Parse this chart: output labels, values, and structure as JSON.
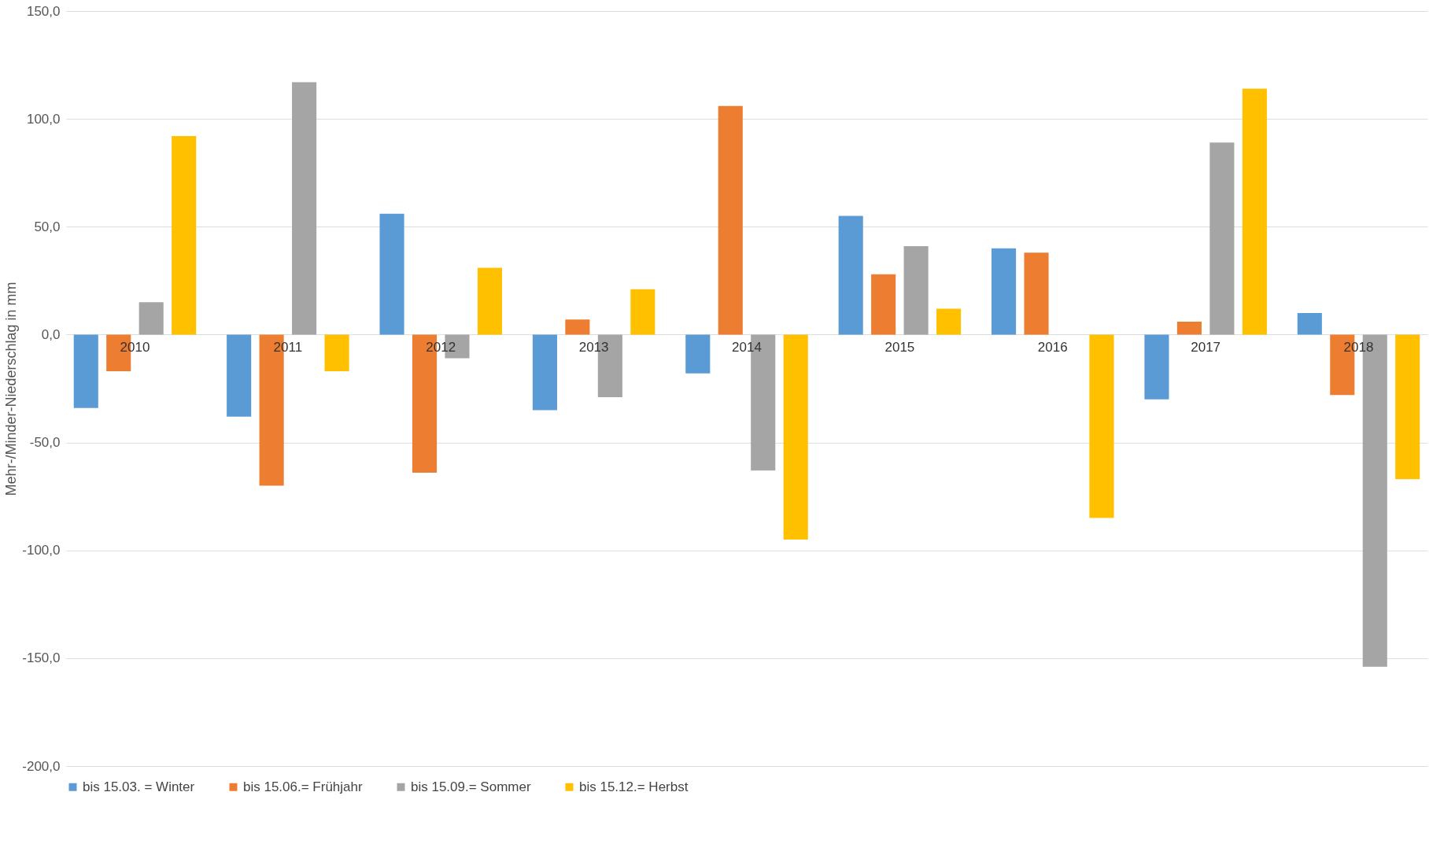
{
  "chart_data": {
    "type": "bar",
    "ylabel": "Mehr-/Minder-Niederschlag in mm",
    "categories": [
      "2010",
      "2011",
      "2012",
      "2013",
      "2014",
      "2015",
      "2016",
      "2017",
      "2018"
    ],
    "series": [
      {
        "name": "bis 15.03. = Winter",
        "color": "#5b9bd5",
        "values": [
          -34,
          -38,
          56,
          -35,
          -18,
          55,
          40,
          -30,
          10
        ]
      },
      {
        "name": "bis 15.06.= Frühjahr",
        "color": "#ed7d31",
        "values": [
          -17,
          -70,
          -64,
          7,
          106,
          28,
          38,
          6,
          -28
        ]
      },
      {
        "name": "bis 15.09.= Sommer",
        "color": "#a5a5a5",
        "values": [
          15,
          117,
          -11,
          -29,
          -63,
          41,
          null,
          89,
          -154
        ]
      },
      {
        "name": "bis 15.12.= Herbst",
        "color": "#ffc000",
        "values": [
          92,
          -17,
          31,
          21,
          -95,
          12,
          -85,
          114,
          -67
        ]
      }
    ],
    "ylim": [
      -200,
      150
    ],
    "yticks": [
      {
        "value": -200,
        "label": "-200,0"
      },
      {
        "value": -150,
        "label": "-150,0"
      },
      {
        "value": -100,
        "label": "-100,0"
      },
      {
        "value": -50,
        "label": "-50,0"
      },
      {
        "value": 0,
        "label": "0,0"
      },
      {
        "value": 50,
        "label": "50,0"
      },
      {
        "value": 100,
        "label": "100,0"
      },
      {
        "value": 150,
        "label": "150,0"
      }
    ],
    "grid": "y",
    "legend": "bottom"
  }
}
